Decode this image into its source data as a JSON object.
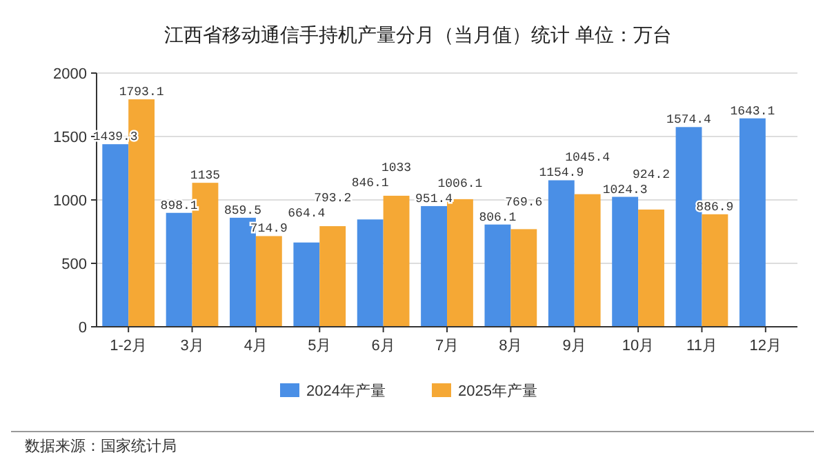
{
  "chart_data": {
    "type": "bar",
    "title": "江西省移动通信手持机产量分月（当月值）统计 单位：万台",
    "categories": [
      "1-2月",
      "3月",
      "4月",
      "5月",
      "6月",
      "7月",
      "8月",
      "9月",
      "10月",
      "11月",
      "12月"
    ],
    "series": [
      {
        "name": "2024年产量",
        "color": "#4a8fe6",
        "values": [
          1439.3,
          898.1,
          859.5,
          664.4,
          846.1,
          951.4,
          806.1,
          1154.9,
          1024.3,
          1574.4,
          1643.1
        ]
      },
      {
        "name": "2025年产量",
        "color": "#f5a835",
        "values": [
          1793.1,
          1135,
          714.9,
          793.2,
          1033,
          1006.1,
          769.6,
          1045.4,
          924.2,
          886.9,
          null
        ]
      }
    ],
    "ylim": [
      0,
      2000
    ],
    "yticks": [
      0,
      500,
      1000,
      1500,
      2000
    ],
    "grid": "y",
    "legend": "bottom",
    "data_labels": true,
    "annotations": [
      "数据来源：国家统计局"
    ]
  }
}
